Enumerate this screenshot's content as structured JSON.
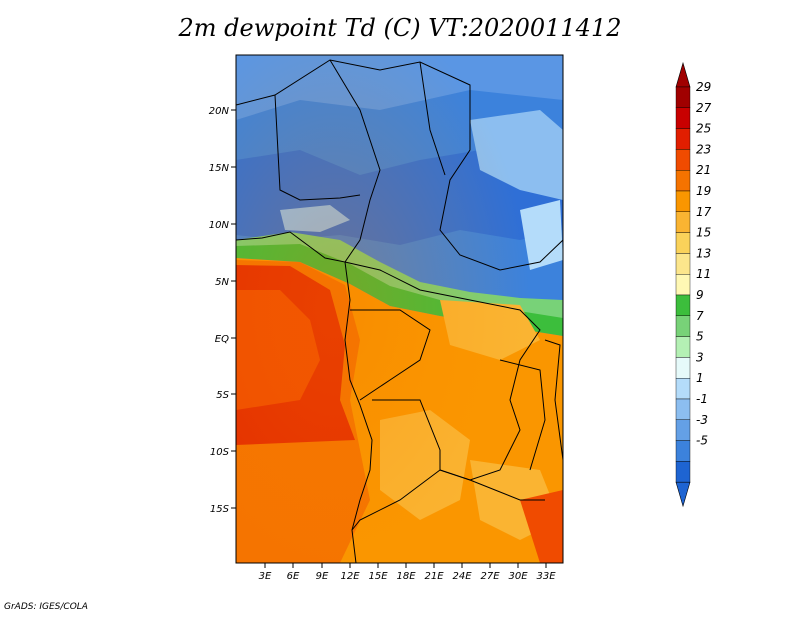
{
  "title": "2m dewpoint Td (C) VT:2020011412",
  "credit": "GrADS: IGES/COLA",
  "lat_labels": [
    "20N",
    "15N",
    "10N",
    "5N",
    "EQ",
    "5S",
    "10S",
    "15S"
  ],
  "lon_labels": [
    "3E",
    "6E",
    "9E",
    "12E",
    "15E",
    "18E",
    "21E",
    "24E",
    "27E",
    "30E",
    "33E"
  ],
  "colorbar": {
    "labels": [
      "29",
      "27",
      "25",
      "23",
      "21",
      "19",
      "17",
      "15",
      "13",
      "11",
      "9",
      "7",
      "5",
      "3",
      "1",
      "-1",
      "-3",
      "-5"
    ],
    "colors": [
      "#a00000",
      "#c80000",
      "#e11e00",
      "#f04b00",
      "#f57300",
      "#fa9600",
      "#fab432",
      "#fad25a",
      "#fce68c",
      "#fff8b4",
      "#3cbe3c",
      "#78d278",
      "#b4f0b4",
      "#e6fafa",
      "#b4dcfa",
      "#8cbef0",
      "#64a0e6",
      "#3c82dc",
      "#1e64d2"
    ],
    "arrow_top": "#a00000",
    "arrow_bottom": "#1e64d2"
  }
}
